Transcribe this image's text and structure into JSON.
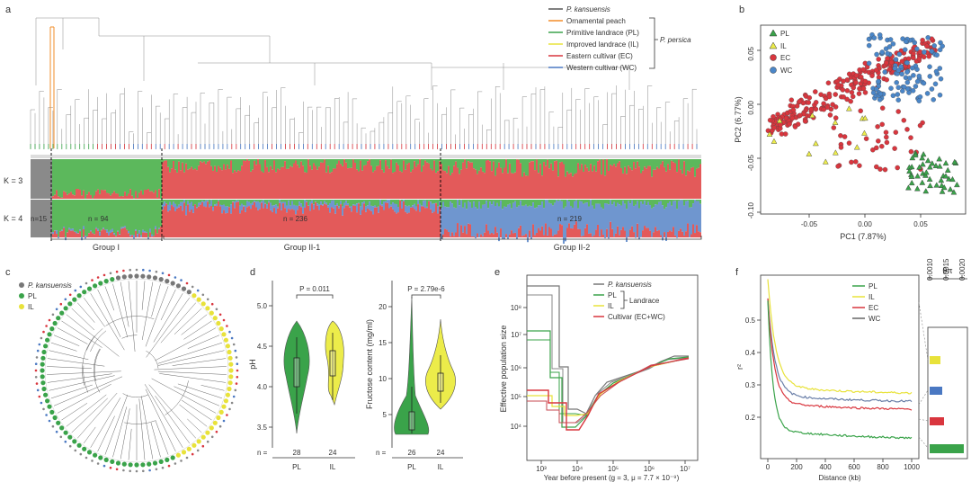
{
  "panel_letters": {
    "a": "a",
    "b": "b",
    "c": "c",
    "d": "d",
    "e": "e",
    "f": "f"
  },
  "panel_a": {
    "legend": [
      {
        "label": "P. kansuensis",
        "color": "#555555",
        "italic": true
      },
      {
        "label": "Ornamental peach",
        "color": "#f28c28"
      },
      {
        "label": "Primitive landrace (PL)",
        "color": "#3aa34a"
      },
      {
        "label": "Improved landrace (IL)",
        "color": "#e8e23a"
      },
      {
        "label": "Eastern  cultivar (EC)",
        "color": "#d9363e"
      },
      {
        "label": "Western cultivar (WC)",
        "color": "#4a78c2"
      }
    ],
    "species_label": "P. persica",
    "k_labels": [
      "K = 3",
      "K = 4"
    ],
    "n_labels": [
      "n=15",
      "n = 94",
      "n = 236",
      "n = 219"
    ],
    "group_labels": [
      "Group I",
      "Group II-1",
      "Group II-2"
    ],
    "colors": {
      "green": "#5cb85c",
      "red": "#e35a5a",
      "blue": "#6f96cf",
      "gray": "#8a8a8a"
    }
  },
  "panel_b": {
    "legend": [
      {
        "label": "PL",
        "color": "#3aa34a",
        "shape": "triangle"
      },
      {
        "label": "IL",
        "color": "#ecec4a",
        "shape": "triangle"
      },
      {
        "label": "EC",
        "color": "#d9363e",
        "shape": "circle"
      },
      {
        "label": "WC",
        "color": "#4a86c8",
        "shape": "circle"
      }
    ],
    "xlabel": "PC1 (7.87%)",
    "ylabel": "PC2 (6.77%)",
    "xticks": [
      "-0.05",
      "0.00",
      "0.05"
    ],
    "yticks": [
      "0.05",
      "0.00",
      "-0.05",
      "-0.10"
    ]
  },
  "panel_c": {
    "legend": [
      {
        "label": "P. kansuensis",
        "color": "#777777"
      },
      {
        "label": "PL",
        "color": "#3aa34a"
      },
      {
        "label": "IL",
        "color": "#e8e23a"
      }
    ]
  },
  "panel_d": {
    "left": {
      "p": "P = 0.011",
      "ylabel": "pH",
      "yticks": [
        "5.0",
        "4.5",
        "4.0",
        "3.5"
      ],
      "n_prefix": "n =",
      "n": [
        "28",
        "24"
      ],
      "groups": [
        "PL",
        "IL"
      ]
    },
    "right": {
      "p": "P = 2.79e-6",
      "ylabel": "Fructose content  (mg/ml)",
      "yticks": [
        "20",
        "15",
        "10",
        "5"
      ],
      "n_prefix": "n =",
      "n": [
        "26",
        "24"
      ],
      "groups": [
        "PL",
        "IL"
      ]
    }
  },
  "panel_e": {
    "legend": [
      {
        "label": "P. kansuensis",
        "color": "#777777"
      },
      {
        "label": "PL",
        "color": "#3aa34a"
      },
      {
        "label": "IL",
        "color": "#e8e23a"
      },
      {
        "label": "Cultivar (EC+WC)",
        "color": "#d9363e"
      }
    ],
    "landrace": "Landrace",
    "ylabel": "Effective population size",
    "xlabel": "Year before present (g = 3, μ = 7.7 × 10⁻⁹)",
    "yticks": [
      "10⁸",
      "10⁷",
      "10⁶",
      "10⁵",
      "10⁴"
    ],
    "xticks": [
      "10³",
      "10⁴",
      "10⁵",
      "10⁶",
      "10⁷"
    ]
  },
  "panel_f": {
    "legend": [
      {
        "label": "PL",
        "color": "#3aa34a"
      },
      {
        "label": "IL",
        "color": "#e8e23a"
      },
      {
        "label": "EC",
        "color": "#d9363e"
      },
      {
        "label": "WC",
        "color": "#666666"
      }
    ],
    "ylabel": "r²",
    "xlabel": "Distance (kb)",
    "yticks": [
      "0.5",
      "0.4",
      "0.3",
      "0.2"
    ],
    "xticks": [
      "0",
      "200",
      "400",
      "600",
      "800",
      "1000"
    ],
    "theta_label": "θπ",
    "theta_ticks": [
      "0.0010",
      "0.0015",
      "0.0020"
    ]
  }
}
